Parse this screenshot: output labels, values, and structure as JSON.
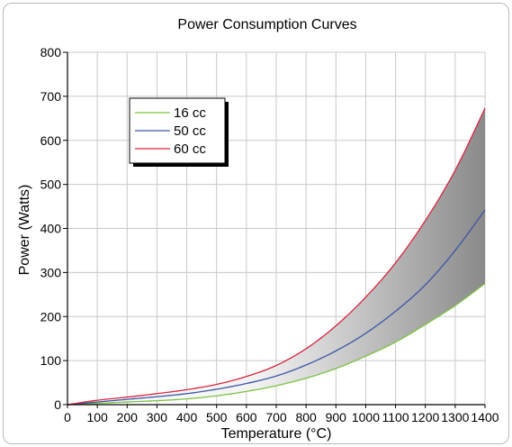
{
  "chart_data": {
    "type": "line",
    "title": "Power Consumption Curves",
    "xlabel": "Temperature (°C)",
    "ylabel": "Power (Watts)",
    "xlim": [
      0,
      1400
    ],
    "ylim": [
      0,
      800
    ],
    "x_ticks": [
      0,
      100,
      200,
      300,
      400,
      500,
      600,
      700,
      800,
      900,
      1000,
      1100,
      1200,
      1300,
      1400
    ],
    "y_ticks": [
      0,
      100,
      200,
      300,
      400,
      500,
      600,
      700,
      800
    ],
    "grid": true,
    "legend_position": "top-left",
    "shaded_region": "between 16 cc and 60 cc curves, gradient light to dark gray",
    "x": [
      0,
      100,
      200,
      300,
      400,
      500,
      600,
      700,
      800,
      900,
      1000,
      1100,
      1200,
      1300,
      1400
    ],
    "series": [
      {
        "name": "16 cc",
        "color": "#7cc242",
        "values": [
          0,
          3,
          6,
          9,
          13,
          20,
          30,
          43,
          60,
          82,
          110,
          142,
          182,
          225,
          275
        ]
      },
      {
        "name": "50 cc",
        "color": "#3a56a6",
        "values": [
          0,
          6,
          12,
          18,
          25,
          35,
          48,
          65,
          90,
          122,
          162,
          212,
          272,
          350,
          442
        ]
      },
      {
        "name": "60 cc",
        "color": "#d7263d",
        "values": [
          0,
          10,
          17,
          25,
          34,
          46,
          64,
          89,
          127,
          179,
          244,
          322,
          418,
          532,
          673
        ]
      }
    ]
  }
}
